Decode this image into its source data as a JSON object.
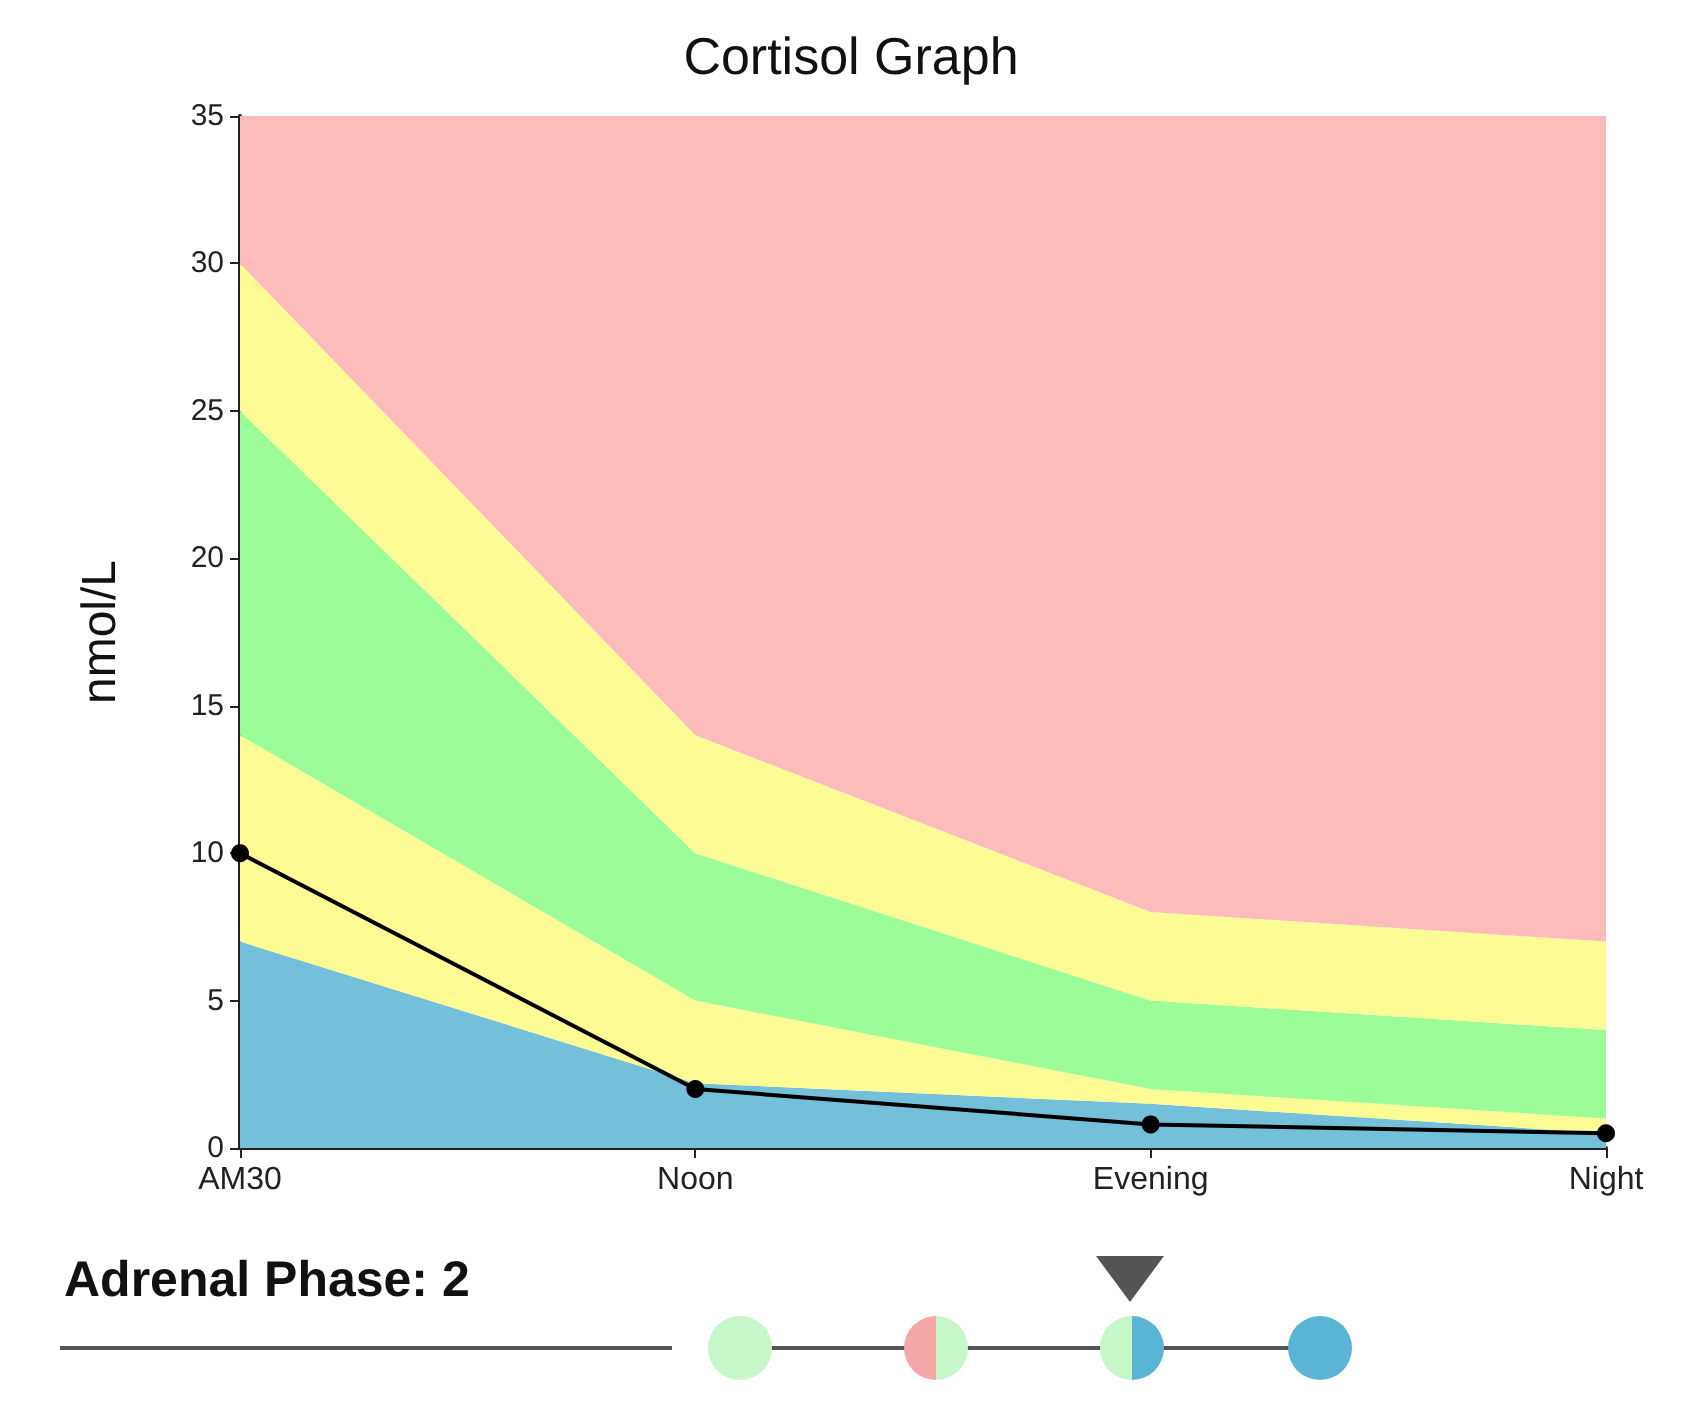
{
  "chart_data": {
    "type": "area",
    "title": "Cortisol Graph",
    "ylabel": "nmol/L",
    "categories": [
      "AM30",
      "Noon",
      "Evening",
      "Night"
    ],
    "stacked": true,
    "ylim": [
      0,
      35
    ],
    "yticks": [
      0,
      5,
      10,
      15,
      20,
      25,
      30,
      35
    ],
    "grid": false,
    "series": [
      {
        "color": "#74c0da",
        "values": [
          7,
          2.2,
          1.5,
          0.5
        ]
      },
      {
        "color": "#fdfb94",
        "values": [
          7,
          2.8,
          0.5,
          0.5
        ]
      },
      {
        "color": "#9cfc98",
        "values": [
          11,
          5,
          3,
          3
        ]
      },
      {
        "color": "#fdfb94",
        "values": [
          5,
          4,
          3,
          3
        ]
      },
      {
        "color": "#fdbcbc",
        "values": [
          5,
          21,
          27,
          28
        ]
      },
      {
        "type": "line",
        "color": "#000000",
        "values": [
          10,
          2,
          0.8,
          0.5
        ],
        "marker": "circle",
        "line_style": "solid"
      }
    ],
    "annotations": [
      "Adrenal Phase: 2"
    ]
  }
}
